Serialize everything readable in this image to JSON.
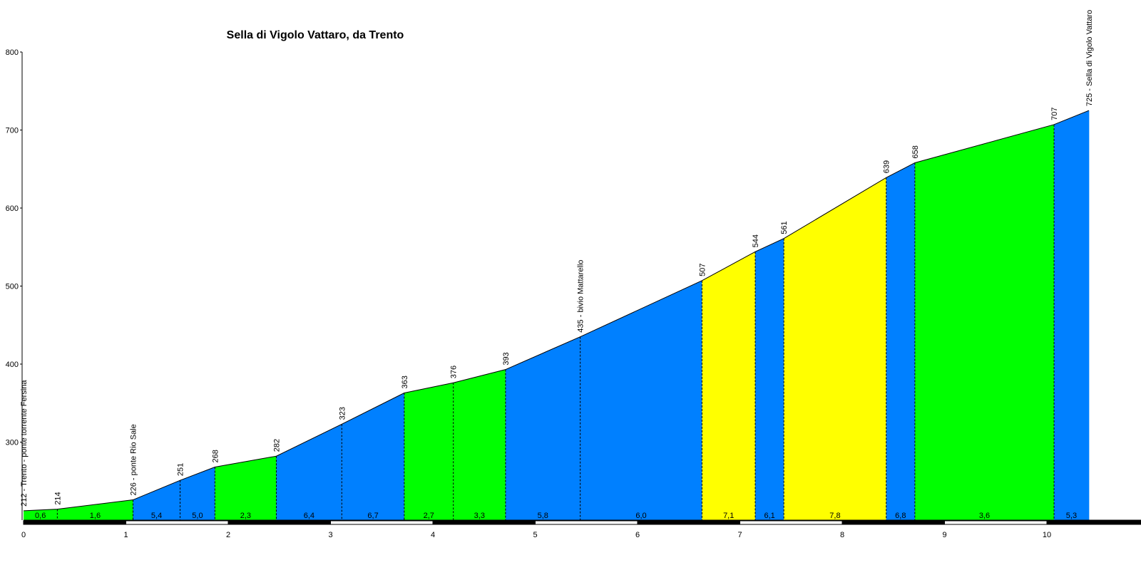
{
  "chart_data": {
    "type": "area",
    "title": "Sella di Vigolo Vattaro, da Trento",
    "xlabel": "",
    "ylabel": "",
    "xlim": [
      0,
      10.9
    ],
    "ylim": [
      200,
      800
    ],
    "x_ticks": [
      "0",
      "1",
      "2",
      "3",
      "4",
      "5",
      "6",
      "7",
      "8",
      "9",
      "10"
    ],
    "y_ticks": [
      "300",
      "400",
      "500",
      "600",
      "700",
      "800"
    ],
    "profile": [
      {
        "km": 0.0,
        "alt": 212,
        "label": "212 - Trento - ponte torrente Fersina"
      },
      {
        "km": 0.33,
        "alt": 214,
        "label": "214"
      },
      {
        "km": 1.07,
        "alt": 226,
        "label": "226 - ponte Rio Sale"
      },
      {
        "km": 1.53,
        "alt": 251,
        "label": "251"
      },
      {
        "km": 1.87,
        "alt": 268,
        "label": "268"
      },
      {
        "km": 2.47,
        "alt": 282,
        "label": "282"
      },
      {
        "km": 3.11,
        "alt": 323,
        "label": "323"
      },
      {
        "km": 3.72,
        "alt": 363,
        "label": "363"
      },
      {
        "km": 4.2,
        "alt": 376,
        "label": "376"
      },
      {
        "km": 4.71,
        "alt": 393,
        "label": "393"
      },
      {
        "km": 5.44,
        "alt": 435,
        "label": "435 - bivio Mattarello"
      },
      {
        "km": 6.63,
        "alt": 507,
        "label": "507"
      },
      {
        "km": 7.15,
        "alt": 544,
        "label": "544"
      },
      {
        "km": 7.43,
        "alt": 561,
        "label": "561"
      },
      {
        "km": 8.43,
        "alt": 639,
        "label": "639"
      },
      {
        "km": 8.71,
        "alt": 658,
        "label": "658"
      },
      {
        "km": 10.07,
        "alt": 707,
        "label": "707"
      },
      {
        "km": 10.41,
        "alt": 725,
        "label": "725 - Sella di Vigolo Vattaro"
      }
    ],
    "segments": [
      {
        "gradient": "0,6",
        "color": "#00ff00"
      },
      {
        "gradient": "1,6",
        "color": "#00ff00"
      },
      {
        "gradient": "5,4",
        "color": "#0080ff"
      },
      {
        "gradient": "5,0",
        "color": "#0080ff"
      },
      {
        "gradient": "2,3",
        "color": "#00ff00"
      },
      {
        "gradient": "6,4",
        "color": "#0080ff"
      },
      {
        "gradient": "6,7",
        "color": "#0080ff"
      },
      {
        "gradient": "2,7",
        "color": "#00ff00"
      },
      {
        "gradient": "3,3",
        "color": "#00ff00"
      },
      {
        "gradient": "5,8",
        "color": "#0080ff"
      },
      {
        "gradient": "6,0",
        "color": "#0080ff"
      },
      {
        "gradient": "7,1",
        "color": "#ffff00"
      },
      {
        "gradient": "6,1",
        "color": "#0080ff"
      },
      {
        "gradient": "7,8",
        "color": "#ffff00"
      },
      {
        "gradient": "6,8",
        "color": "#0080ff"
      },
      {
        "gradient": "3,6",
        "color": "#00ff00"
      },
      {
        "gradient": "5,3",
        "color": "#0080ff"
      }
    ],
    "grid": false,
    "legend": "none"
  }
}
